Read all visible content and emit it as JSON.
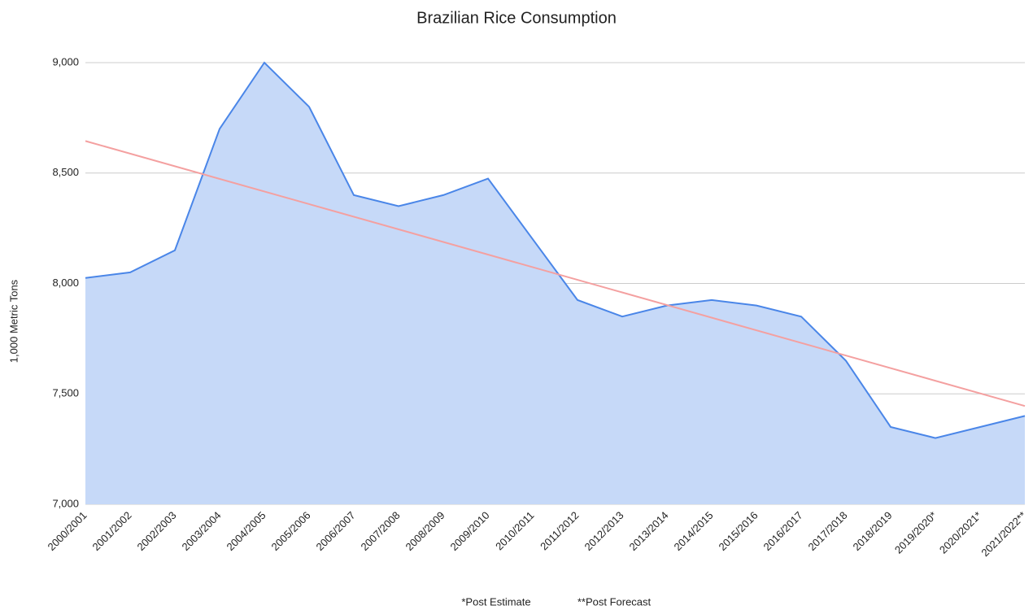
{
  "chart_data": {
    "type": "area",
    "title": "Brazilian Rice Consumption",
    "y_label": "1,000 Metric Tons",
    "footnotes": [
      "*Post Estimate",
      "**Post Forecast"
    ],
    "categories": [
      "2000/2001",
      "2001/2002",
      "2002/2003",
      "2003/2004",
      "2004/2005",
      "2005/2006",
      "2006/2007",
      "2007/2008",
      "2008/2009",
      "2009/2010",
      "2010/2011",
      "2011/2012",
      "2012/2013",
      "2013/2014",
      "2014/2015",
      "2015/2016",
      "2016/2017",
      "2017/2018",
      "2018/2019",
      "2019/2020*",
      "2020/2021*",
      "2021/2022**"
    ],
    "series": [
      {
        "color": "#4a86e8",
        "fill": "#c6d9f8",
        "values": [
          8025,
          8050,
          8150,
          8700,
          9000,
          8800,
          8400,
          8350,
          8400,
          8475,
          8200,
          7925,
          7850,
          7900,
          7925,
          7900,
          7850,
          7650,
          7350,
          7300,
          7350,
          7400
        ]
      }
    ],
    "trendline": {
      "color": "#f4a0a0",
      "values": [
        8645,
        7445
      ]
    },
    "ylim": [
      7000,
      9000
    ],
    "yticks": [
      {
        "value": 7000,
        "label": "7,000"
      },
      {
        "value": 7500,
        "label": "7,500"
      },
      {
        "value": 8000,
        "label": "8,000"
      },
      {
        "value": 8500,
        "label": "8,500"
      },
      {
        "value": 9000,
        "label": "9,000"
      }
    ],
    "grid": true
  }
}
